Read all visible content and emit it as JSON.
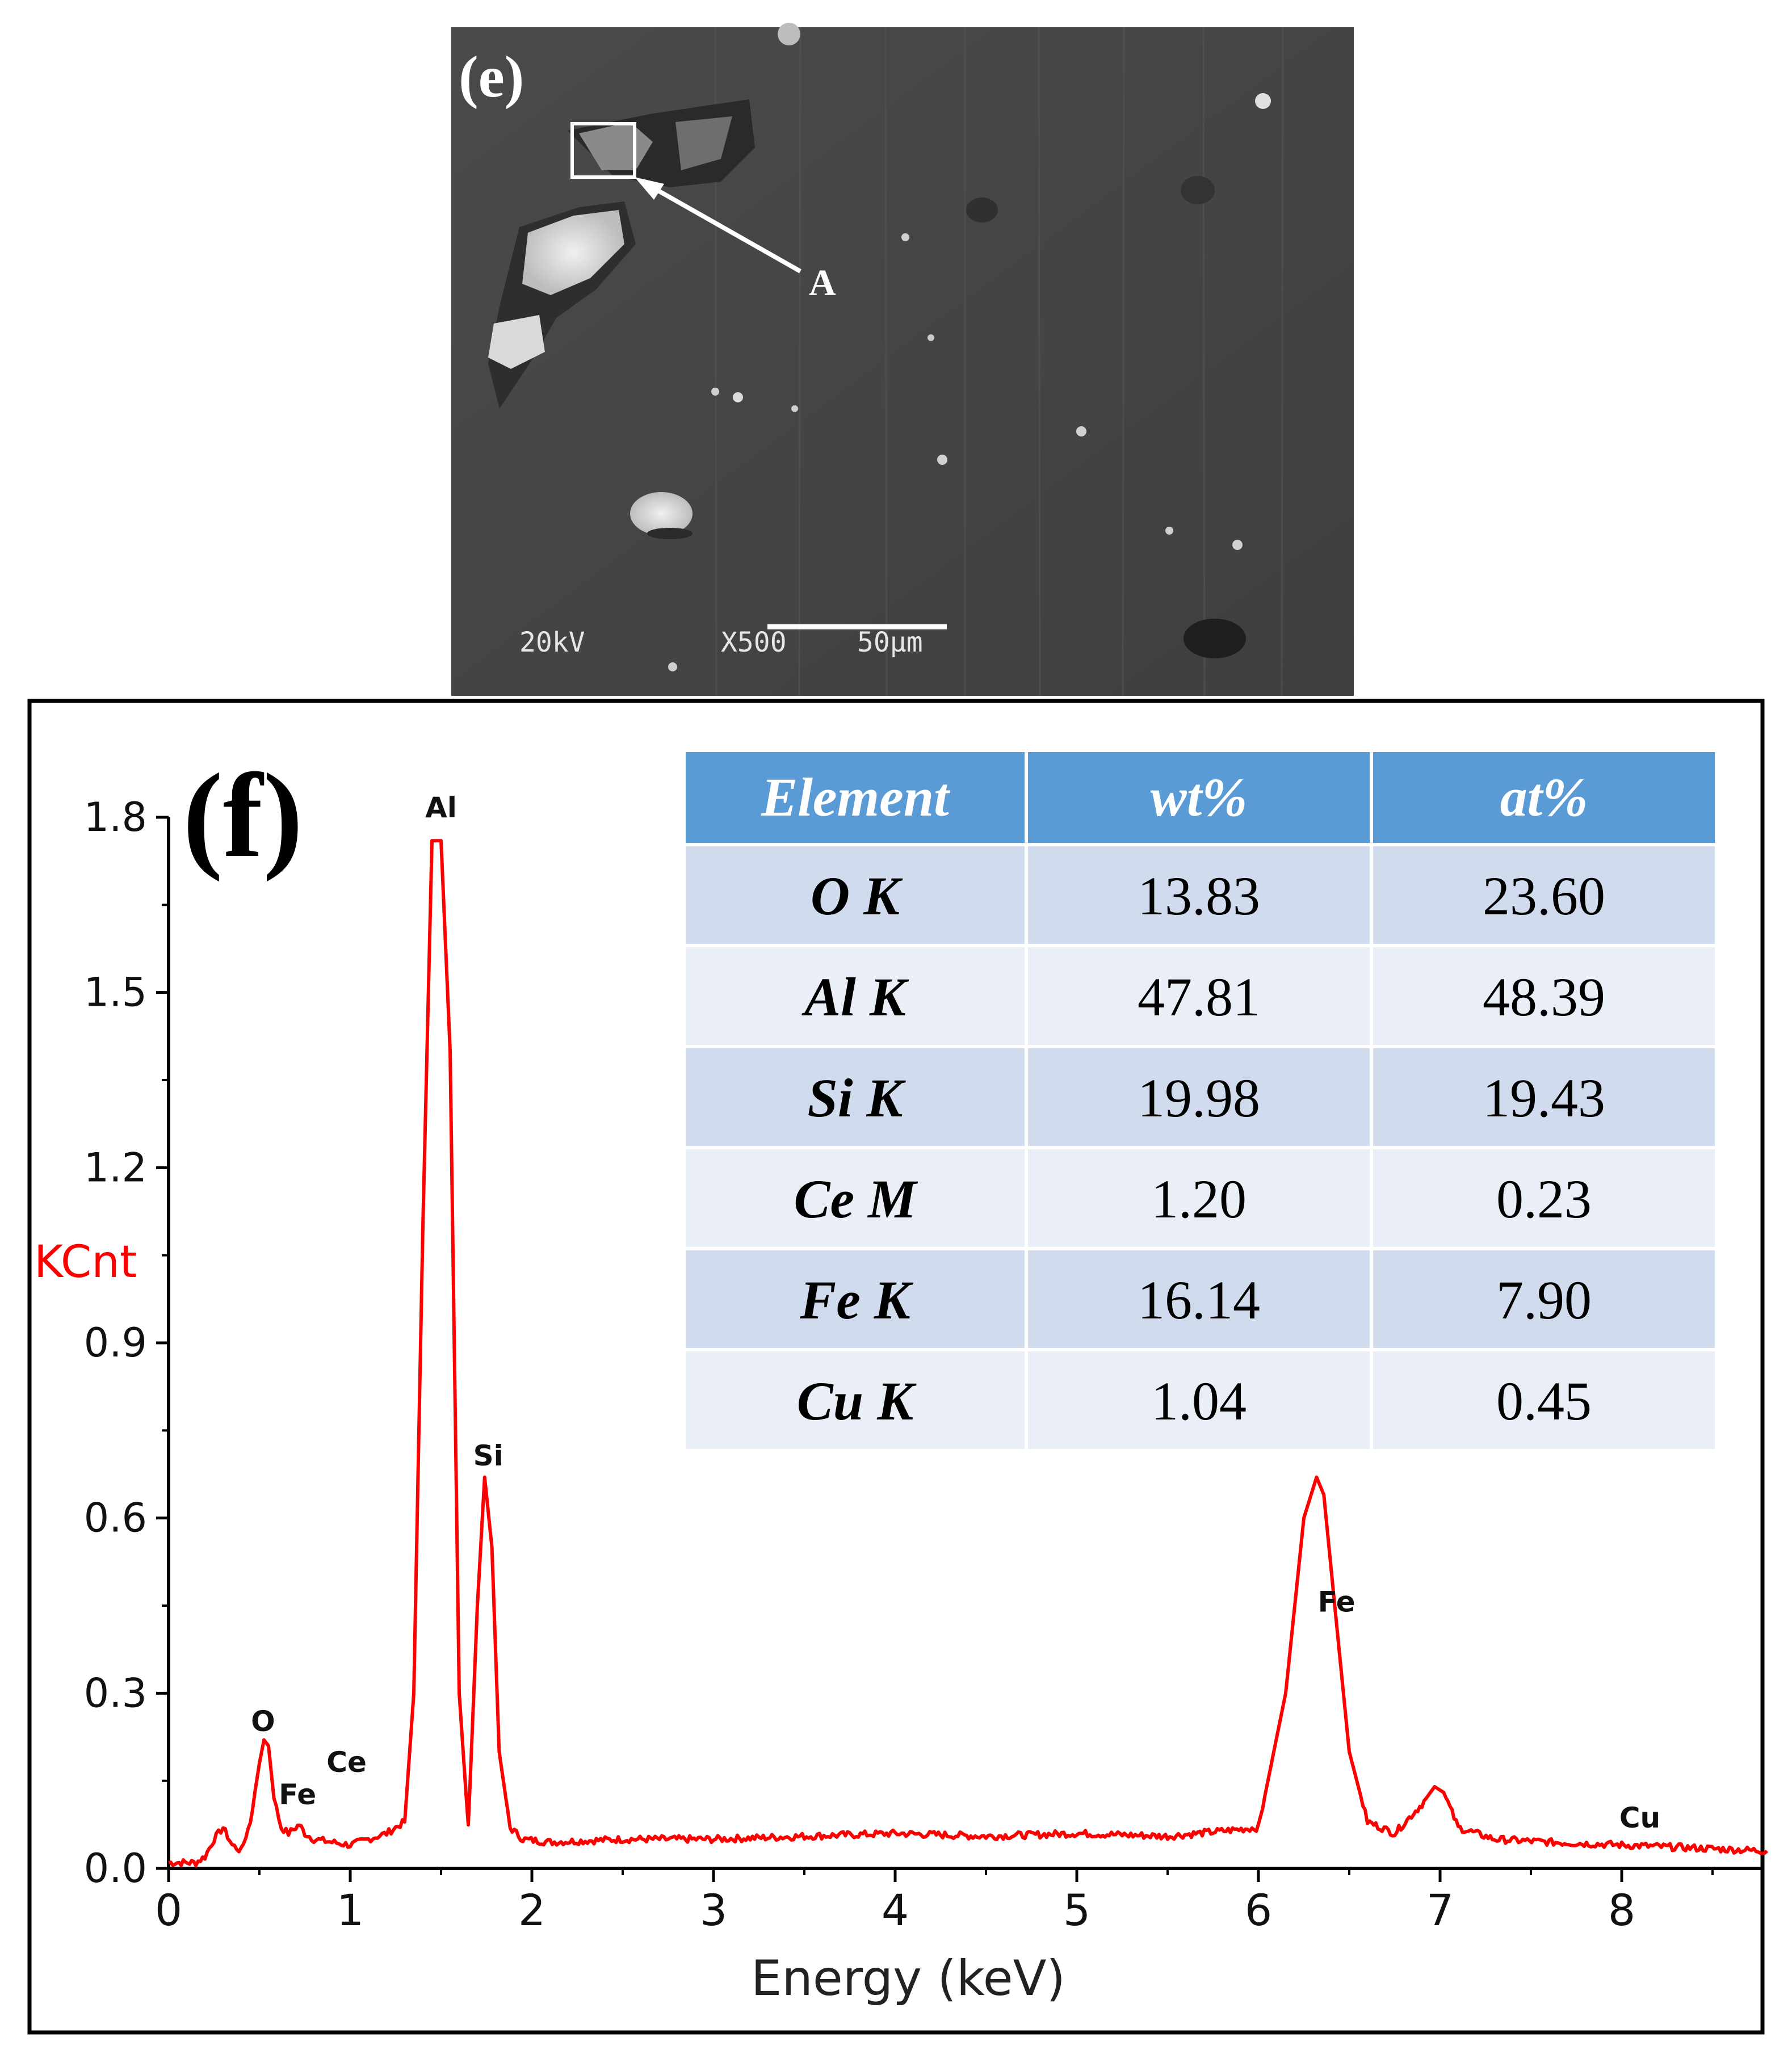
{
  "sem_panel": {
    "label": "(e)",
    "marker": "A",
    "voltage": "20kV",
    "magnification": "X500",
    "scale_bar": "50μm"
  },
  "eds_panel": {
    "label": "(f)",
    "y_unit_label": "KCnt",
    "x_axis_label": "Energy (keV)",
    "x_ticks": [
      "0",
      "1",
      "2",
      "3",
      "4",
      "5",
      "6",
      "7",
      "8"
    ],
    "y_ticks": [
      "0.0",
      "0.3",
      "0.6",
      "0.9",
      "1.2",
      "1.5",
      "1.8"
    ]
  },
  "table": {
    "headers": [
      "Element",
      "wt%",
      "at%"
    ],
    "rows": [
      [
        "O K",
        "13.83",
        "23.60"
      ],
      [
        "Al K",
        "47.81",
        "48.39"
      ],
      [
        "Si K",
        "19.98",
        "19.43"
      ],
      [
        "Ce M",
        "1.20",
        "0.23"
      ],
      [
        "Fe K",
        "16.14",
        "7.90"
      ],
      [
        "Cu K",
        "1.04",
        "0.45"
      ]
    ]
  },
  "colors": {
    "spectrum": "#ff0000",
    "table_header": "#5b9bd5",
    "table_row_dark": "#d0dcee",
    "table_row_light": "#e9eef7",
    "ylabel": "#ff0000"
  },
  "chart_data": {
    "type": "line",
    "xlabel": "Energy (keV)",
    "ylabel": "KCnt",
    "xlim": [
      0,
      8.8
    ],
    "ylim": [
      0,
      1.8
    ],
    "series": [
      {
        "x": [
          0.0,
          0.15,
          0.2,
          0.25,
          0.3,
          0.35,
          0.4,
          0.45,
          0.5,
          0.525,
          0.55,
          0.58,
          0.62,
          0.66,
          0.7,
          0.72,
          0.75,
          0.8,
          0.9,
          1.0,
          1.1,
          1.2,
          1.3,
          1.35,
          1.4,
          1.45,
          1.5,
          1.55,
          1.6,
          1.65,
          1.7,
          1.74,
          1.78,
          1.82,
          1.88,
          1.95,
          2.1,
          2.5,
          3.0,
          3.5,
          4.0,
          4.5,
          5.0,
          5.5,
          6.0,
          6.15,
          6.25,
          6.32,
          6.36,
          6.42,
          6.5,
          6.6,
          6.75,
          6.9,
          6.97,
          7.02,
          7.1,
          7.3,
          7.6,
          8.0,
          8.4,
          8.8
        ],
        "y": [
          0.01,
          0.01,
          0.02,
          0.05,
          0.07,
          0.04,
          0.03,
          0.08,
          0.18,
          0.22,
          0.21,
          0.12,
          0.07,
          0.06,
          0.07,
          0.075,
          0.06,
          0.05,
          0.045,
          0.04,
          0.05,
          0.06,
          0.08,
          0.3,
          1.1,
          1.76,
          1.76,
          1.4,
          0.3,
          0.07,
          0.45,
          0.67,
          0.55,
          0.2,
          0.07,
          0.05,
          0.045,
          0.05,
          0.05,
          0.055,
          0.06,
          0.055,
          0.06,
          0.055,
          0.07,
          0.3,
          0.6,
          0.67,
          0.64,
          0.45,
          0.2,
          0.08,
          0.06,
          0.11,
          0.14,
          0.13,
          0.07,
          0.05,
          0.045,
          0.04,
          0.035,
          0.03
        ]
      }
    ],
    "peak_labels": [
      {
        "label": "O",
        "x": 0.52,
        "y": 0.235
      },
      {
        "label": "Fe",
        "x": 0.71,
        "y": 0.11
      },
      {
        "label": "Ce",
        "x": 0.98,
        "y": 0.165
      },
      {
        "label": "Al",
        "x": 1.5,
        "y": 1.8
      },
      {
        "label": "Si",
        "x": 1.76,
        "y": 0.69
      },
      {
        "label": "Fe",
        "x": 6.43,
        "y": 0.44
      },
      {
        "label": "Cu",
        "x": 8.1,
        "y": 0.07
      }
    ]
  }
}
